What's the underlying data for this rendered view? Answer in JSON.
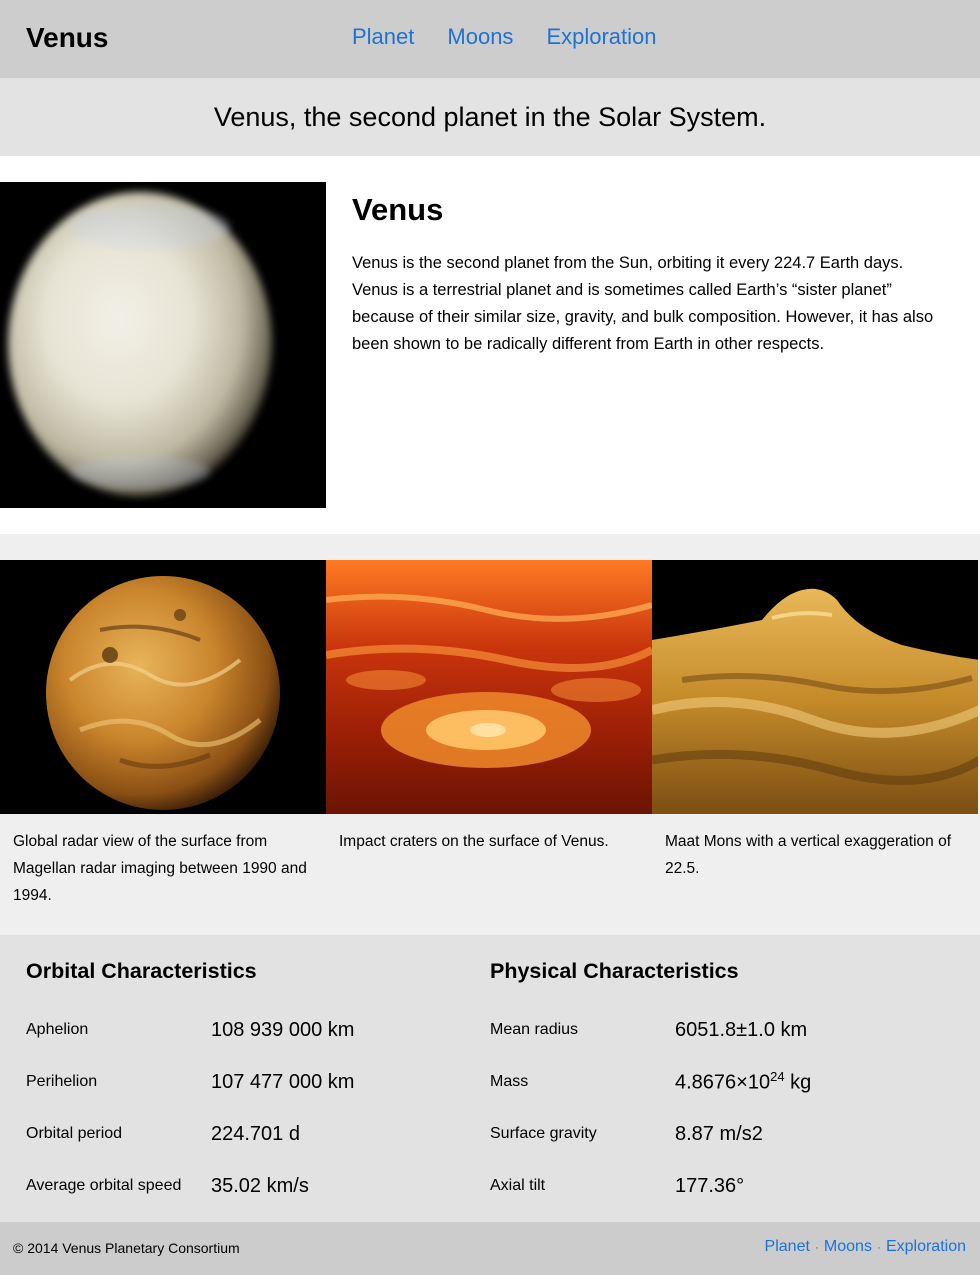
{
  "header": {
    "logo": "Venus",
    "nav": [
      "Planet",
      "Moons",
      "Exploration"
    ]
  },
  "tagline": "Venus, the second planet in the Solar System.",
  "intro": {
    "title": "Venus",
    "text": "Venus is the second planet from the Sun, orbiting it every 224.7 Earth days. Venus is a terrestrial planet and is sometimes called Earth’s “sister planet” because of their similar size, gravity, and bulk composition. However, it has also been shown to be radically different from Earth in other respects."
  },
  "gallery": [
    {
      "caption": "Global radar view of the surface from Magellan radar imaging between 1990 and 1994."
    },
    {
      "caption": "Impact craters on the surface of Venus."
    },
    {
      "caption": "Maat Mons with a vertical exaggeration of 22.5."
    }
  ],
  "orbital": {
    "title": "Orbital Characteristics",
    "rows": [
      {
        "label": "Aphelion",
        "value": "108 939 000 km"
      },
      {
        "label": "Perihelion",
        "value": "107 477 000 km"
      },
      {
        "label": "Orbital period",
        "value": "224.701 d"
      },
      {
        "label": "Average orbital speed",
        "value": "35.02 km/s"
      }
    ]
  },
  "physical": {
    "title": "Physical Characteristics",
    "rows": [
      {
        "label": "Mean radius",
        "value": "6051.8±1.0 km"
      },
      {
        "label": "Mass",
        "value": "4.8676×10",
        "sup": "24",
        "unit": " kg"
      },
      {
        "label": "Surface gravity",
        "value": "8.87 m/s2"
      },
      {
        "label": "Axial tilt",
        "value": "177.36°"
      }
    ]
  },
  "footer": {
    "copyright": "© 2014 Venus Planetary Consortium",
    "nav": [
      "Planet",
      "Moons",
      "Exploration"
    ],
    "separator": "·"
  }
}
